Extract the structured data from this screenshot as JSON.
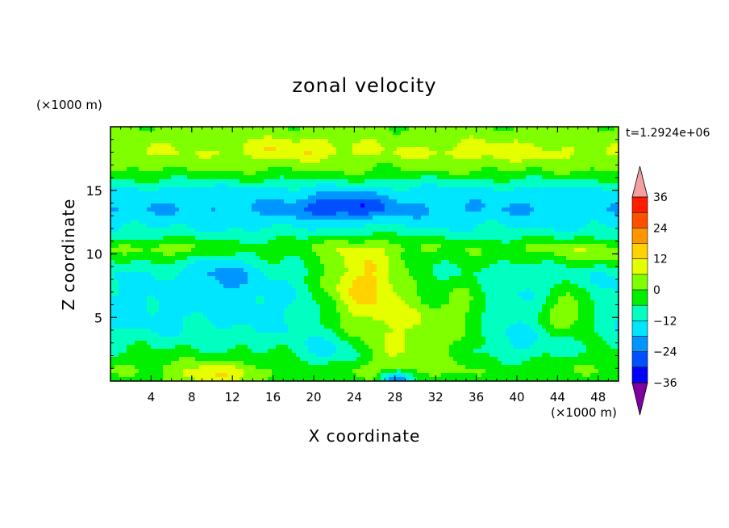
{
  "chart_data": {
    "type": "heatmap",
    "title": "zonal velocity",
    "xlabel": "X coordinate",
    "ylabel": "Z coordinate",
    "x_unit": "(×1000 m)",
    "y_unit": "(×1000 m)",
    "time_label": "t=1.2924e+06",
    "xlim": [
      0,
      50
    ],
    "ylim": [
      0,
      20
    ],
    "x_ticks": [
      4,
      8,
      12,
      16,
      20,
      24,
      28,
      32,
      36,
      40,
      44,
      48
    ],
    "y_ticks": [
      5,
      10,
      15
    ],
    "colorbar": {
      "levels": [
        -42,
        -36,
        -30,
        -24,
        -18,
        -12,
        -6,
        0,
        6,
        12,
        18,
        24,
        30,
        36,
        42
      ],
      "labels": [
        36,
        24,
        12,
        0,
        -12,
        -24,
        -36
      ],
      "colors": [
        "#8000a0",
        "#5000a0",
        "#2800c8",
        "#0000ff",
        "#0050ff",
        "#0096ff",
        "#00e6ff",
        "#00ffc0",
        "#00f000",
        "#80ff00",
        "#e6ff00",
        "#ffd200",
        "#ff9600",
        "#ff5000",
        "#ff1e00",
        "#f4a0a0"
      ],
      "over_color": "#f4a0a0",
      "under_color": "#8000a0"
    },
    "field": {
      "base_profile": [
        {
          "z": 0.0,
          "u": 2
        },
        {
          "z": 1.0,
          "u": 6
        },
        {
          "z": 2.5,
          "u": 0
        },
        {
          "z": 4.0,
          "u": -6
        },
        {
          "z": 6.0,
          "u": -8
        },
        {
          "z": 8.5,
          "u": -6
        },
        {
          "z": 10.5,
          "u": 4
        },
        {
          "z": 12.0,
          "u": -6
        },
        {
          "z": 13.5,
          "u": -12
        },
        {
          "z": 15.0,
          "u": -8
        },
        {
          "z": 16.5,
          "u": 6
        },
        {
          "z": 18.0,
          "u": 12
        },
        {
          "z": 20.0,
          "u": 7
        }
      ],
      "features": [
        {
          "x": 25,
          "z": 7.8,
          "rx": 4.5,
          "rz": 2.8,
          "amp": 22
        },
        {
          "x": 25,
          "z": 4.0,
          "rx": 5.0,
          "rz": 4.0,
          "amp": 10
        },
        {
          "x": 31,
          "z": 4.5,
          "rx": 5.0,
          "rz": 2.5,
          "amp": 14
        },
        {
          "x": 35,
          "z": 6.5,
          "rx": 3.0,
          "rz": 3.0,
          "amp": 9
        },
        {
          "x": 22,
          "z": 2.2,
          "rx": 3.5,
          "rz": 1.5,
          "amp": -14
        },
        {
          "x": 45,
          "z": 5.5,
          "rx": 3.0,
          "rz": 2.0,
          "amp": 18
        },
        {
          "x": 47,
          "z": 10.0,
          "rx": 6.0,
          "rz": 1.0,
          "amp": 8
        },
        {
          "x": 6,
          "z": 10.3,
          "rx": 5.0,
          "rz": 0.8,
          "amp": 6
        },
        {
          "x": 10,
          "z": 0.3,
          "rx": 4.0,
          "rz": 1.0,
          "amp": 14
        },
        {
          "x": 28,
          "z": 0.2,
          "rx": 1.5,
          "rz": 0.6,
          "amp": -22
        },
        {
          "x": 23,
          "z": 13.7,
          "rx": 4.5,
          "rz": 0.9,
          "amp": -14
        },
        {
          "x": 11,
          "z": 8.5,
          "rx": 3.0,
          "rz": 2.0,
          "amp": -8
        },
        {
          "x": 18,
          "z": 18.3,
          "rx": 5.0,
          "rz": 0.9,
          "amp": 6
        },
        {
          "x": 38,
          "z": 18.0,
          "rx": 6.0,
          "rz": 0.9,
          "amp": 4
        },
        {
          "x": 40,
          "z": 2.5,
          "rx": 5.0,
          "rz": 1.5,
          "amp": -6
        }
      ]
    }
  }
}
